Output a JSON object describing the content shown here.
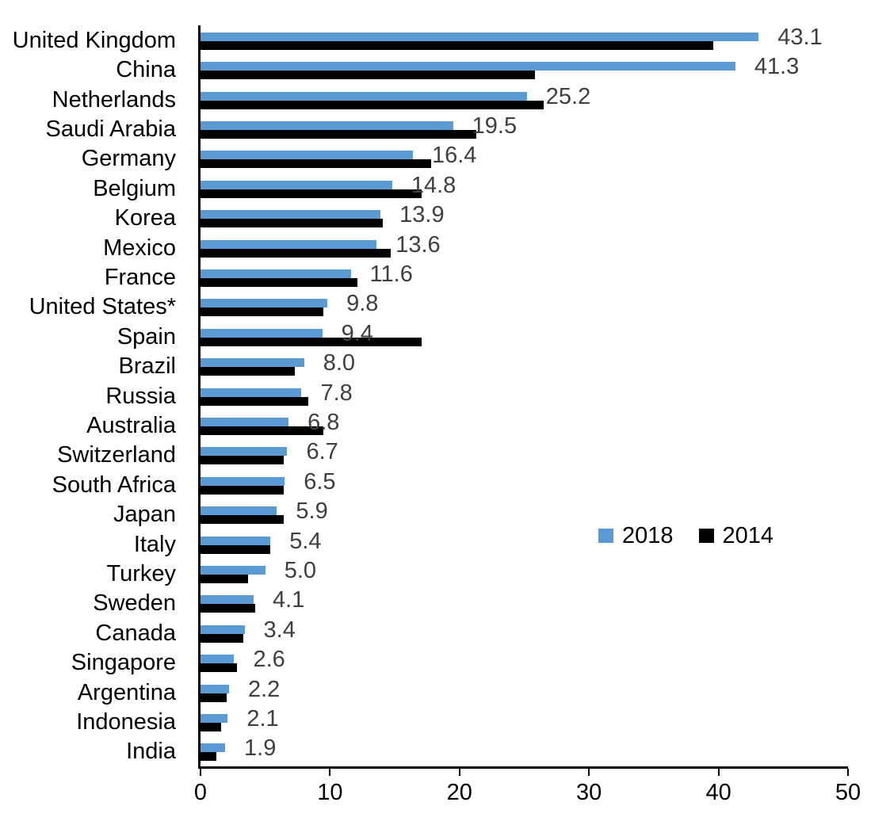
{
  "chart_data": {
    "type": "bar",
    "orientation": "horizontal",
    "title": "",
    "xlabel": "",
    "ylabel": "",
    "categories": [
      "United Kingdom",
      "China",
      "Netherlands",
      "Saudi Arabia",
      "Germany",
      "Belgium",
      "Korea",
      "Mexico",
      "France",
      "United States*",
      "Spain",
      "Brazil",
      "Russia",
      "Australia",
      "Switzerland",
      "South Africa",
      "Japan",
      "Italy",
      "Turkey",
      "Sweden",
      "Canada",
      "Singapore",
      "Argentina",
      "Indonesia",
      "India"
    ],
    "series": [
      {
        "name": "2018",
        "color": "#5B9BD5",
        "values": [
          43.1,
          41.3,
          25.2,
          19.5,
          16.4,
          14.8,
          13.9,
          13.6,
          11.6,
          9.8,
          9.4,
          8.0,
          7.8,
          6.8,
          6.7,
          6.5,
          5.9,
          5.4,
          5.0,
          4.1,
          3.4,
          2.6,
          2.2,
          2.1,
          1.9
        ],
        "data_labels": [
          "43.1",
          "41.3",
          "25.2",
          "19.5",
          "16.4",
          "14.8",
          "13.9",
          "13.6",
          "11.6",
          "9.8",
          "9.4",
          "8.0",
          "7.8",
          "6.8",
          "6.7",
          "6.5",
          "5.9",
          "5.4",
          "5.0",
          "4.1",
          "3.4",
          "2.6",
          "2.2",
          "2.1",
          "1.9"
        ]
      },
      {
        "name": "2014",
        "color": "#000000",
        "values": [
          39.6,
          25.8,
          26.5,
          21.3,
          17.8,
          17.1,
          14.1,
          14.7,
          12.1,
          9.5,
          17.1,
          7.3,
          8.3,
          9.5,
          6.4,
          6.4,
          6.4,
          5.4,
          3.7,
          4.2,
          3.3,
          2.8,
          2.0,
          1.6,
          1.2
        ],
        "data_labels": null
      }
    ],
    "xlim": [
      0,
      50
    ],
    "x_ticks": [
      "0",
      "10",
      "20",
      "30",
      "40",
      "50"
    ],
    "grid": "off",
    "legend_position": "middle-right",
    "data_label_color": "#3F3F3F",
    "axis_color": "#000000"
  }
}
